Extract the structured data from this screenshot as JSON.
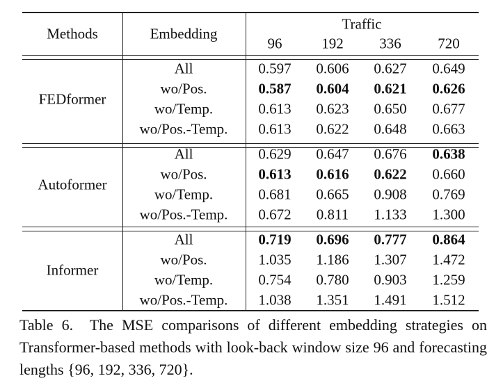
{
  "table": {
    "header": {
      "methods": "Methods",
      "embedding": "Embedding",
      "dataset": "Traffic",
      "horizons": [
        "96",
        "192",
        "336",
        "720"
      ]
    },
    "groups": [
      {
        "method": "FEDformer",
        "rows": [
          {
            "embedding": "All",
            "values": [
              "0.597",
              "0.606",
              "0.627",
              "0.649"
            ],
            "bold": []
          },
          {
            "embedding": "wo/Pos.",
            "values": [
              "0.587",
              "0.604",
              "0.621",
              "0.626"
            ],
            "bold": [
              0,
              1,
              2,
              3
            ]
          },
          {
            "embedding": "wo/Temp.",
            "values": [
              "0.613",
              "0.623",
              "0.650",
              "0.677"
            ],
            "bold": []
          },
          {
            "embedding": "wo/Pos.-Temp.",
            "values": [
              "0.613",
              "0.622",
              "0.648",
              "0.663"
            ],
            "bold": []
          }
        ]
      },
      {
        "method": "Autoformer",
        "rows": [
          {
            "embedding": "All",
            "values": [
              "0.629",
              "0.647",
              "0.676",
              "0.638"
            ],
            "bold": [
              3
            ]
          },
          {
            "embedding": "wo/Pos.",
            "values": [
              "0.613",
              "0.616",
              "0.622",
              "0.660"
            ],
            "bold": [
              0,
              1,
              2
            ]
          },
          {
            "embedding": "wo/Temp.",
            "values": [
              "0.681",
              "0.665",
              "0.908",
              "0.769"
            ],
            "bold": []
          },
          {
            "embedding": "wo/Pos.-Temp.",
            "values": [
              "0.672",
              "0.811",
              "1.133",
              "1.300"
            ],
            "bold": []
          }
        ]
      },
      {
        "method": "Informer",
        "rows": [
          {
            "embedding": "All",
            "values": [
              "0.719",
              "0.696",
              "0.777",
              "0.864"
            ],
            "bold": [
              0,
              1,
              2,
              3
            ]
          },
          {
            "embedding": "wo/Pos.",
            "values": [
              "1.035",
              "1.186",
              "1.307",
              "1.472"
            ],
            "bold": []
          },
          {
            "embedding": "wo/Temp.",
            "values": [
              "0.754",
              "0.780",
              "0.903",
              "1.259"
            ],
            "bold": []
          },
          {
            "embedding": "wo/Pos.-Temp.",
            "values": [
              "1.038",
              "1.351",
              "1.491",
              "1.512"
            ],
            "bold": []
          }
        ]
      }
    ]
  },
  "caption": {
    "label": "Table 6.",
    "text": "The MSE comparisons of different embedding strategies on Transformer-based methods with look-back window size 96 and forecasting lengths {96, 192, 336, 720}."
  }
}
